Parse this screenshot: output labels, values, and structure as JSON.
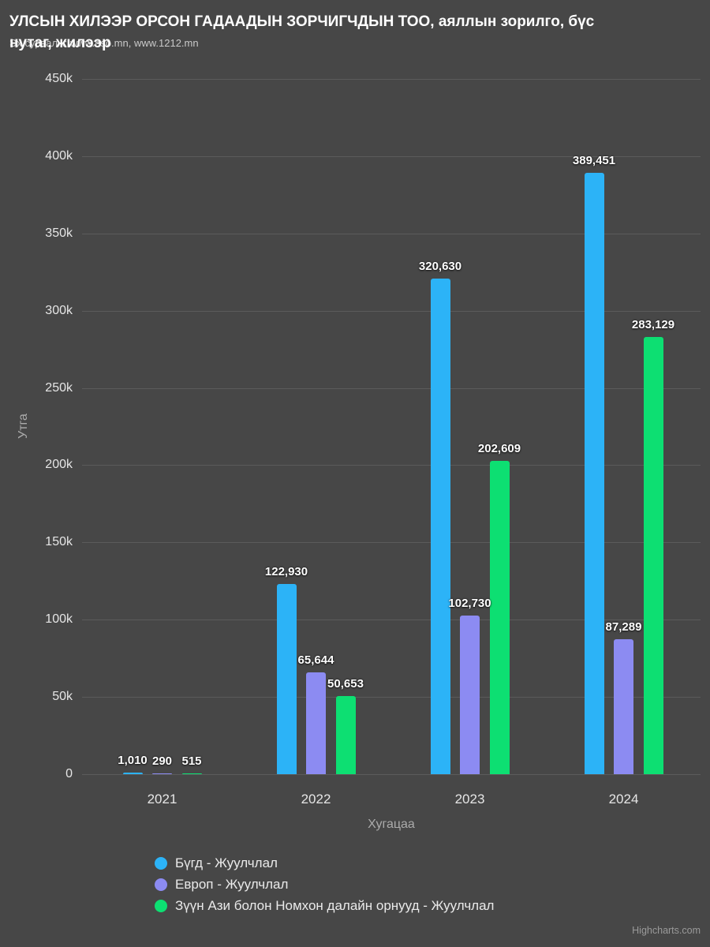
{
  "header": {
    "title": "УЛСЫН ХИЛЭЭР ОРСОН ГАДААДЫН ЗОРЧИГЧДЫН ТОО, аяллын зорилго, бүс нутаг, жилээр",
    "subtitle": "Эх сурвалж: www.nso.mn, www.1212.mn"
  },
  "credits": "Highcharts.com",
  "chart_data": {
    "type": "bar",
    "title": "УЛСЫН ХИЛЭЭР ОРСОН ГАДААДЫН ЗОРЧИГЧДЫН ТОО, аяллын зорилго, бүс нутаг, жилээр",
    "subtitle": "Эх сурвалж: www.nso.mn, www.1212.mn",
    "xlabel": "Хугацаа",
    "ylabel": "Утга",
    "categories": [
      "2021",
      "2022",
      "2023",
      "2024"
    ],
    "series": [
      {
        "name": "Бүгд - Жуулчлал",
        "color": "#2cb3f7",
        "values": [
          1010,
          122930,
          320630,
          389451
        ]
      },
      {
        "name": "Европ - Жуулчлал",
        "color": "#8c8bf2",
        "values": [
          290,
          65644,
          102730,
          87289
        ]
      },
      {
        "name": "Зүүн Ази болон Номхон далайн орнууд - Жуулчлал",
        "color": "#0ddf72",
        "values": [
          515,
          50653,
          202609,
          283129
        ]
      }
    ],
    "ylim": [
      0,
      450000
    ],
    "yticks": [
      {
        "value": 0,
        "label": "0"
      },
      {
        "value": 50000,
        "label": "50k"
      },
      {
        "value": 100000,
        "label": "100k"
      },
      {
        "value": 150000,
        "label": "150k"
      },
      {
        "value": 200000,
        "label": "200k"
      },
      {
        "value": 250000,
        "label": "250k"
      },
      {
        "value": 300000,
        "label": "300k"
      },
      {
        "value": 350000,
        "label": "350k"
      },
      {
        "value": 400000,
        "label": "400k"
      },
      {
        "value": 450000,
        "label": "450k"
      }
    ],
    "grid": true,
    "legend_position": "bottom-left",
    "background_color": "#474747",
    "gridline_color": "#5b5b5b"
  }
}
